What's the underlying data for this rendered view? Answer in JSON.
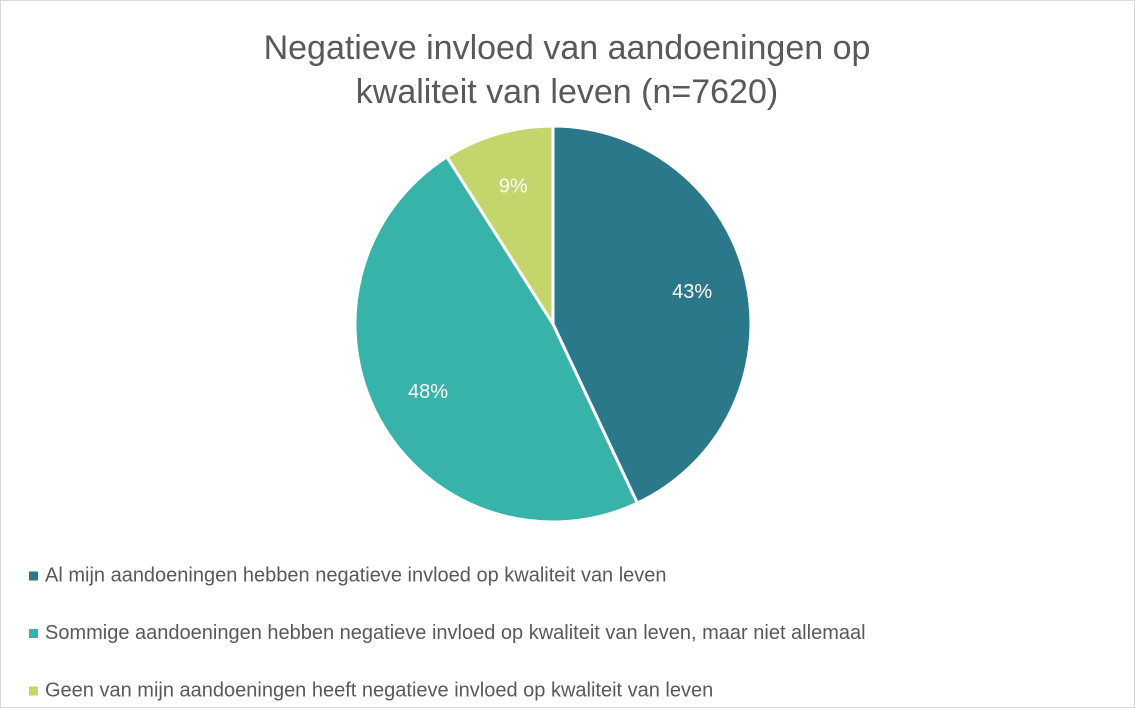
{
  "chart_data": {
    "type": "pie",
    "title": "Negatieve invloed van aandoeningen op kwaliteit van leven (n=7620)",
    "categories": [
      "Al mijn aandoeningen hebben negatieve invloed op kwaliteit van leven",
      "Sommige aandoeningen hebben negatieve invloed op kwaliteit van leven, maar niet allemaal",
      "Geen van mijn aandoeningen heeft negatieve invloed op kwaliteit van leven"
    ],
    "values": [
      43,
      48,
      9
    ],
    "value_labels": [
      "43%",
      "48%",
      "9%"
    ],
    "colors": [
      "#2a7889",
      "#37b3aa",
      "#c4d66b"
    ],
    "legend": "bottom"
  }
}
